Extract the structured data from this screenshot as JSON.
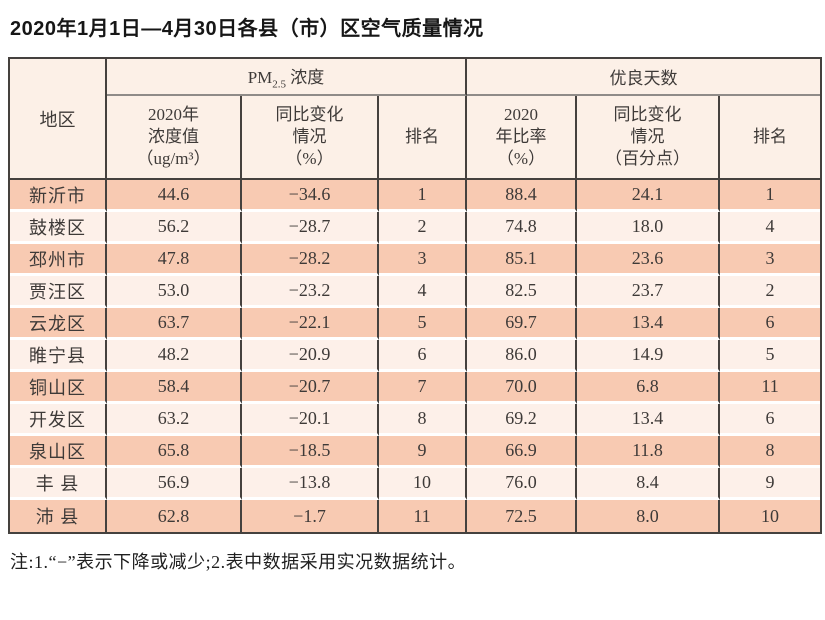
{
  "title": "2020年1月1日—4月30日各县（市）区空气质量情况",
  "table": {
    "header": {
      "region": "地区",
      "pm_group": {
        "prefix": "PM",
        "sub": "2.5",
        "suffix": " 浓度"
      },
      "days_group": "优良天数",
      "sub_headers": {
        "pm_value": "2020年\n浓度值\n（ug/m³）",
        "pm_change": "同比变化\n情况\n（%）",
        "pm_rank": "排名",
        "days_rate": "2020\n年比率\n（%）",
        "days_change": "同比变化\n情况\n（百分点）",
        "days_rank": "排名"
      }
    },
    "rows": [
      [
        "新沂市",
        "44.6",
        "−34.6",
        "1",
        "88.4",
        "24.1",
        "1"
      ],
      [
        "鼓楼区",
        "56.2",
        "−28.7",
        "2",
        "74.8",
        "18.0",
        "4"
      ],
      [
        "邳州市",
        "47.8",
        "−28.2",
        "3",
        "85.1",
        "23.6",
        "3"
      ],
      [
        "贾汪区",
        "53.0",
        "−23.2",
        "4",
        "82.5",
        "23.7",
        "2"
      ],
      [
        "云龙区",
        "63.7",
        "−22.1",
        "5",
        "69.7",
        "13.4",
        "6"
      ],
      [
        "睢宁县",
        "48.2",
        "−20.9",
        "6",
        "86.0",
        "14.9",
        "5"
      ],
      [
        "铜山区",
        "58.4",
        "−20.7",
        "7",
        "70.0",
        "6.8",
        "11"
      ],
      [
        "开发区",
        "63.2",
        "−20.1",
        "8",
        "69.2",
        "13.4",
        "6"
      ],
      [
        "泉山区",
        "65.8",
        "−18.5",
        "9",
        "66.9",
        "11.8",
        "8"
      ],
      [
        "丰 县",
        "56.9",
        "−13.8",
        "10",
        "76.0",
        "8.4",
        "9"
      ],
      [
        "沛 县",
        "62.8",
        "−1.7",
        "11",
        "72.5",
        "8.0",
        "10"
      ]
    ]
  },
  "note": "注:1.“−”表示下降或减少;2.表中数据采用实况数据统计。",
  "colors": {
    "row_odd": "#f8cab2",
    "row_even": "#fdf0e9",
    "header_bg": "#fcf0e7",
    "border": "#45413e",
    "group_divider": "#8f8b88"
  }
}
